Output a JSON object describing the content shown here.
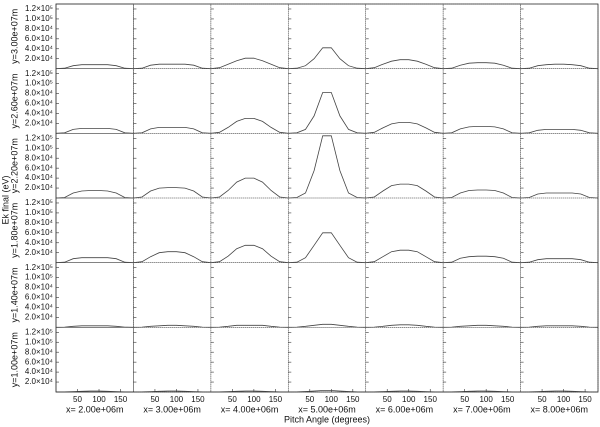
{
  "chart_data": {
    "type": "line",
    "ylabel": "Ek final (eV)",
    "xlabel": "Pitch Angle (degrees)",
    "color": "#444444",
    "x": [
      0,
      20,
      40,
      60,
      80,
      100,
      120,
      140,
      160,
      180
    ],
    "xlim": [
      0,
      180
    ],
    "xticks": [
      50,
      100,
      150
    ],
    "ylim": [
      0,
      130000
    ],
    "yticks": [
      {
        "value": 20000,
        "label": "2.0×10⁴"
      },
      {
        "value": 40000,
        "label": "4.0×10⁴"
      },
      {
        "value": 60000,
        "label": "6.0×10⁴"
      },
      {
        "value": 80000,
        "label": "8.0×10⁴"
      },
      {
        "value": 100000,
        "label": "1.0×10⁵"
      },
      {
        "value": 120000,
        "label": "1.2×10⁵"
      }
    ],
    "rows": [
      "y=3.00e+07m",
      "y=2.60e+07m",
      "y=2.20e+07m",
      "y=1.80e+07m",
      "y=1.40e+07m",
      "y=1.00e+07m"
    ],
    "columns": [
      "x= 2.00e+06m",
      "x= 3.00e+06m",
      "x= 4.00e+06m",
      "x= 5.00e+06m",
      "x= 6.00e+06m",
      "x= 7.00e+06m",
      "x= 8.00e+06m"
    ],
    "panels": [
      [
        [
          0,
          1000,
          6000,
          8000,
          8000,
          8000,
          8000,
          6000,
          1000,
          0
        ],
        [
          0,
          1000,
          7000,
          9000,
          9000,
          9000,
          9000,
          7000,
          1000,
          0
        ],
        [
          0,
          2000,
          9000,
          16000,
          21000,
          21000,
          16000,
          9000,
          2000,
          0
        ],
        [
          0,
          1000,
          6000,
          20000,
          42000,
          42000,
          20000,
          6000,
          1000,
          0
        ],
        [
          0,
          2000,
          9000,
          15000,
          18000,
          18000,
          15000,
          9000,
          2000,
          0
        ],
        [
          0,
          1000,
          7000,
          11000,
          12000,
          12000,
          11000,
          7000,
          1000,
          0
        ],
        [
          0,
          1000,
          6000,
          8000,
          9000,
          9000,
          8000,
          6000,
          1000,
          0
        ]
      ],
      [
        [
          0,
          1000,
          8000,
          10000,
          10000,
          10000,
          10000,
          8000,
          1000,
          0
        ],
        [
          0,
          1000,
          9000,
          12000,
          12000,
          12000,
          12000,
          9000,
          1000,
          0
        ],
        [
          0,
          2000,
          12000,
          24000,
          30000,
          30000,
          24000,
          12000,
          2000,
          0
        ],
        [
          0,
          1000,
          8000,
          35000,
          82000,
          82000,
          35000,
          8000,
          1000,
          0
        ],
        [
          0,
          2000,
          11000,
          19000,
          22000,
          22000,
          19000,
          11000,
          2000,
          0
        ],
        [
          0,
          1000,
          9000,
          13000,
          14000,
          14000,
          13000,
          9000,
          1000,
          0
        ],
        [
          0,
          1000,
          6000,
          8000,
          8000,
          8000,
          8000,
          6000,
          1000,
          0
        ]
      ],
      [
        [
          0,
          1000,
          10000,
          14000,
          15000,
          15000,
          14000,
          10000,
          1000,
          0
        ],
        [
          0,
          2000,
          14000,
          20000,
          21000,
          21000,
          20000,
          14000,
          2000,
          0
        ],
        [
          0,
          2000,
          15000,
          32000,
          40000,
          40000,
          32000,
          15000,
          2000,
          0
        ],
        [
          0,
          1000,
          10000,
          55000,
          125000,
          125000,
          55000,
          10000,
          1000,
          0
        ],
        [
          0,
          2000,
          14000,
          25000,
          28000,
          28000,
          25000,
          14000,
          2000,
          0
        ],
        [
          0,
          1000,
          10000,
          15000,
          16000,
          16000,
          15000,
          10000,
          1000,
          0
        ],
        [
          0,
          1000,
          8000,
          10000,
          10000,
          10000,
          10000,
          8000,
          1000,
          0
        ]
      ],
      [
        [
          0,
          1000,
          8000,
          10000,
          10000,
          10000,
          10000,
          8000,
          1000,
          0
        ],
        [
          0,
          2000,
          12000,
          20000,
          22000,
          22000,
          20000,
          12000,
          2000,
          0
        ],
        [
          0,
          2000,
          13000,
          28000,
          35000,
          35000,
          28000,
          13000,
          2000,
          0
        ],
        [
          0,
          1000,
          10000,
          35000,
          60000,
          60000,
          35000,
          10000,
          1000,
          0
        ],
        [
          0,
          2000,
          12000,
          22000,
          25000,
          25000,
          22000,
          12000,
          2000,
          0
        ],
        [
          0,
          1000,
          9000,
          12000,
          13000,
          13000,
          12000,
          9000,
          1000,
          0
        ],
        [
          0,
          1000,
          6000,
          8000,
          8000,
          8000,
          8000,
          6000,
          1000,
          0
        ]
      ],
      [
        [
          0,
          500,
          2000,
          3000,
          3000,
          3000,
          3000,
          2000,
          500,
          0
        ],
        [
          0,
          500,
          2000,
          3000,
          4000,
          4000,
          3000,
          2000,
          500,
          0
        ],
        [
          0,
          500,
          2000,
          4000,
          4000,
          4000,
          4000,
          2000,
          500,
          0
        ],
        [
          0,
          500,
          2000,
          4000,
          6000,
          6000,
          4000,
          2000,
          500,
          0
        ],
        [
          0,
          500,
          2000,
          4000,
          5000,
          5000,
          4000,
          2000,
          500,
          0
        ],
        [
          0,
          500,
          2000,
          3000,
          4000,
          4000,
          3000,
          2000,
          500,
          0
        ],
        [
          0,
          500,
          2000,
          3000,
          3000,
          3000,
          3000,
          2000,
          500,
          0
        ]
      ],
      [
        [
          0,
          200,
          800,
          1500,
          2000,
          2000,
          1500,
          800,
          200,
          0
        ],
        [
          0,
          200,
          800,
          1500,
          2000,
          2000,
          1500,
          800,
          200,
          0
        ],
        [
          0,
          200,
          800,
          1500,
          2000,
          2000,
          1500,
          800,
          200,
          0
        ],
        [
          0,
          200,
          1000,
          2000,
          3000,
          3000,
          2000,
          1000,
          200,
          0
        ],
        [
          0,
          200,
          800,
          1500,
          2000,
          2000,
          1500,
          800,
          200,
          0
        ],
        [
          0,
          200,
          800,
          1500,
          2000,
          2000,
          1500,
          800,
          200,
          0
        ],
        [
          0,
          200,
          800,
          1500,
          2000,
          2000,
          1500,
          800,
          200,
          0
        ]
      ]
    ]
  }
}
